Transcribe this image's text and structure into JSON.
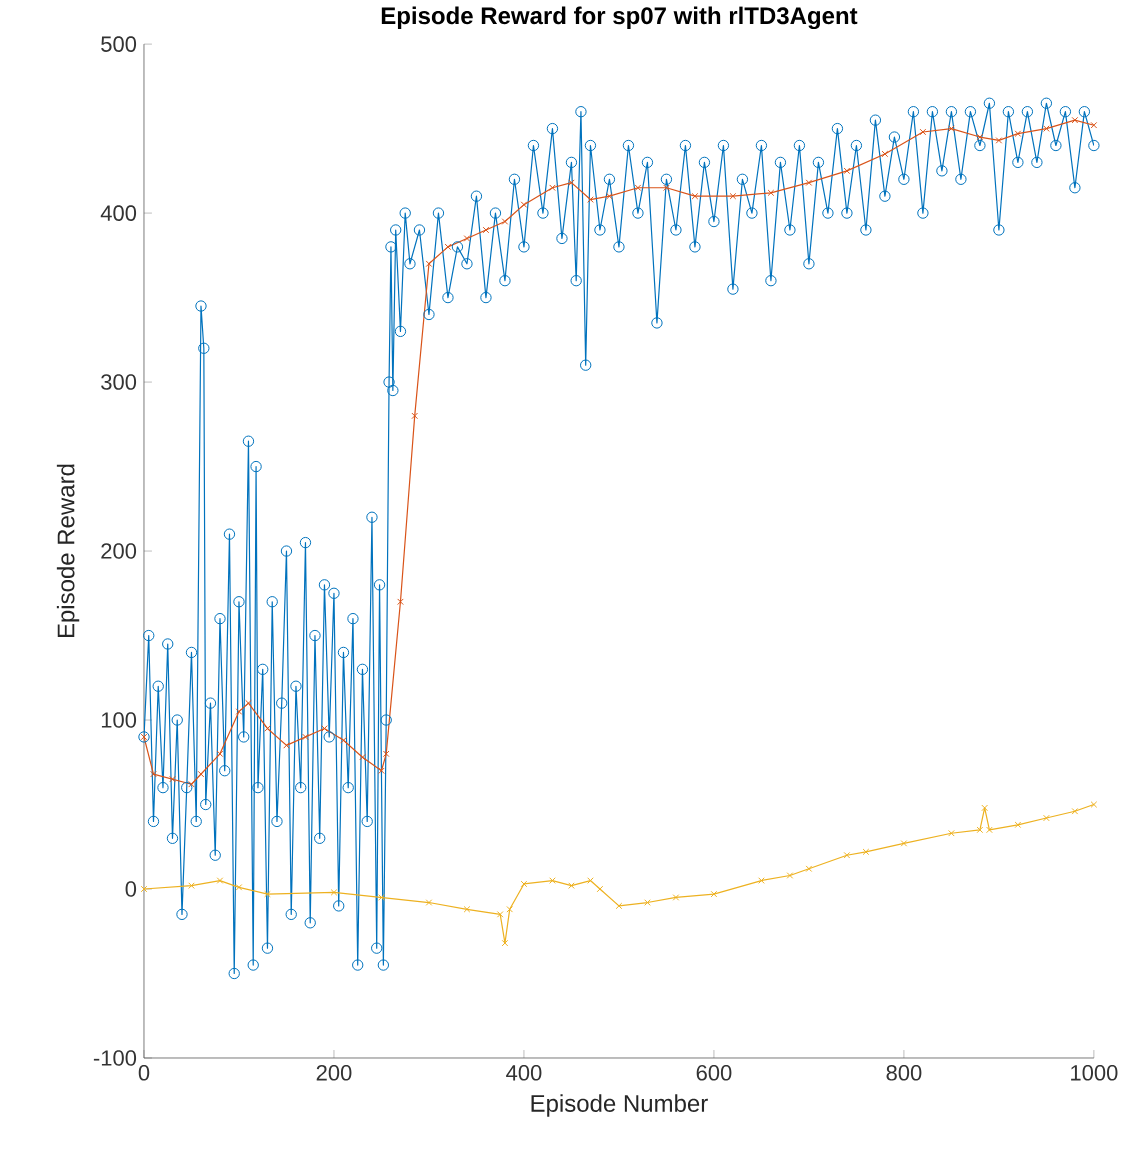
{
  "chart_data": {
    "type": "line",
    "title": "Episode Reward for sp07 with rlTD3Agent",
    "xlabel": "Episode Number",
    "ylabel": "Episode Reward",
    "xlim": [
      0,
      1000
    ],
    "ylim": [
      -100,
      500
    ],
    "xticks": [
      0,
      200,
      400,
      600,
      800,
      1000
    ],
    "yticks": [
      -100,
      0,
      100,
      200,
      300,
      400,
      500
    ],
    "grid": false,
    "legend": false,
    "series": [
      {
        "color": "#0072bd",
        "marker": "circle",
        "x": [
          0,
          5,
          10,
          15,
          20,
          25,
          30,
          35,
          40,
          45,
          50,
          55,
          60,
          63,
          65,
          70,
          75,
          80,
          85,
          90,
          95,
          100,
          105,
          110,
          115,
          118,
          120,
          125,
          130,
          135,
          140,
          145,
          150,
          155,
          160,
          165,
          170,
          175,
          180,
          185,
          190,
          195,
          200,
          205,
          210,
          215,
          220,
          225,
          230,
          235,
          240,
          245,
          248,
          252,
          255,
          258,
          260,
          262,
          265,
          270,
          275,
          280,
          290,
          300,
          310,
          320,
          330,
          340,
          350,
          360,
          370,
          380,
          390,
          400,
          410,
          420,
          430,
          440,
          450,
          455,
          460,
          465,
          470,
          480,
          490,
          500,
          510,
          520,
          530,
          540,
          550,
          560,
          570,
          580,
          590,
          600,
          610,
          620,
          630,
          640,
          650,
          660,
          670,
          680,
          690,
          700,
          710,
          720,
          730,
          740,
          750,
          760,
          770,
          780,
          790,
          800,
          810,
          820,
          830,
          840,
          850,
          860,
          870,
          880,
          890,
          900,
          910,
          920,
          930,
          940,
          950,
          960,
          970,
          980,
          990,
          1000
        ],
        "values": [
          90,
          150,
          40,
          120,
          60,
          145,
          30,
          100,
          -15,
          60,
          140,
          40,
          345,
          320,
          50,
          110,
          20,
          160,
          70,
          210,
          -50,
          170,
          90,
          265,
          -45,
          250,
          60,
          130,
          -35,
          170,
          40,
          110,
          200,
          -15,
          120,
          60,
          205,
          -20,
          150,
          30,
          180,
          90,
          175,
          -10,
          140,
          60,
          160,
          -45,
          130,
          40,
          220,
          -35,
          180,
          -45,
          100,
          300,
          380,
          295,
          390,
          330,
          400,
          370,
          390,
          340,
          400,
          350,
          380,
          370,
          410,
          350,
          400,
          360,
          420,
          380,
          440,
          400,
          450,
          385,
          430,
          360,
          460,
          310,
          440,
          390,
          420,
          380,
          440,
          400,
          430,
          335,
          420,
          390,
          440,
          380,
          430,
          395,
          440,
          355,
          420,
          400,
          440,
          360,
          430,
          390,
          440,
          370,
          430,
          400,
          450,
          400,
          440,
          390,
          455,
          410,
          445,
          420,
          460,
          400,
          460,
          425,
          460,
          420,
          460,
          440,
          465,
          390,
          460,
          430,
          460,
          430,
          465,
          440,
          460,
          415,
          460,
          440
        ]
      },
      {
        "color": "#d95319",
        "marker": "cross",
        "x": [
          0,
          10,
          30,
          50,
          60,
          80,
          100,
          110,
          130,
          150,
          170,
          190,
          210,
          230,
          250,
          255,
          270,
          285,
          300,
          320,
          340,
          360,
          380,
          400,
          430,
          450,
          470,
          490,
          520,
          550,
          580,
          620,
          660,
          700,
          740,
          780,
          820,
          850,
          880,
          900,
          920,
          950,
          980,
          1000
        ],
        "values": [
          90,
          68,
          65,
          62,
          68,
          80,
          105,
          110,
          95,
          85,
          90,
          95,
          88,
          78,
          70,
          80,
          170,
          280,
          370,
          380,
          385,
          390,
          395,
          405,
          415,
          418,
          408,
          410,
          415,
          415,
          410,
          410,
          412,
          418,
          425,
          435,
          448,
          450,
          445,
          443,
          447,
          450,
          455,
          452
        ]
      },
      {
        "color": "#edb120",
        "marker": "cross",
        "x": [
          0,
          50,
          80,
          100,
          130,
          200,
          250,
          300,
          340,
          375,
          380,
          385,
          400,
          430,
          450,
          470,
          480,
          500,
          530,
          560,
          600,
          650,
          680,
          700,
          740,
          760,
          800,
          850,
          880,
          885,
          890,
          920,
          950,
          980,
          1000
        ],
        "values": [
          0,
          2,
          5,
          1,
          -3,
          -2,
          -5,
          -8,
          -12,
          -15,
          -32,
          -12,
          3,
          5,
          2,
          5,
          0,
          -10,
          -8,
          -5,
          -3,
          5,
          8,
          12,
          20,
          22,
          27,
          33,
          35,
          48,
          35,
          38,
          42,
          46,
          50
        ]
      }
    ]
  }
}
